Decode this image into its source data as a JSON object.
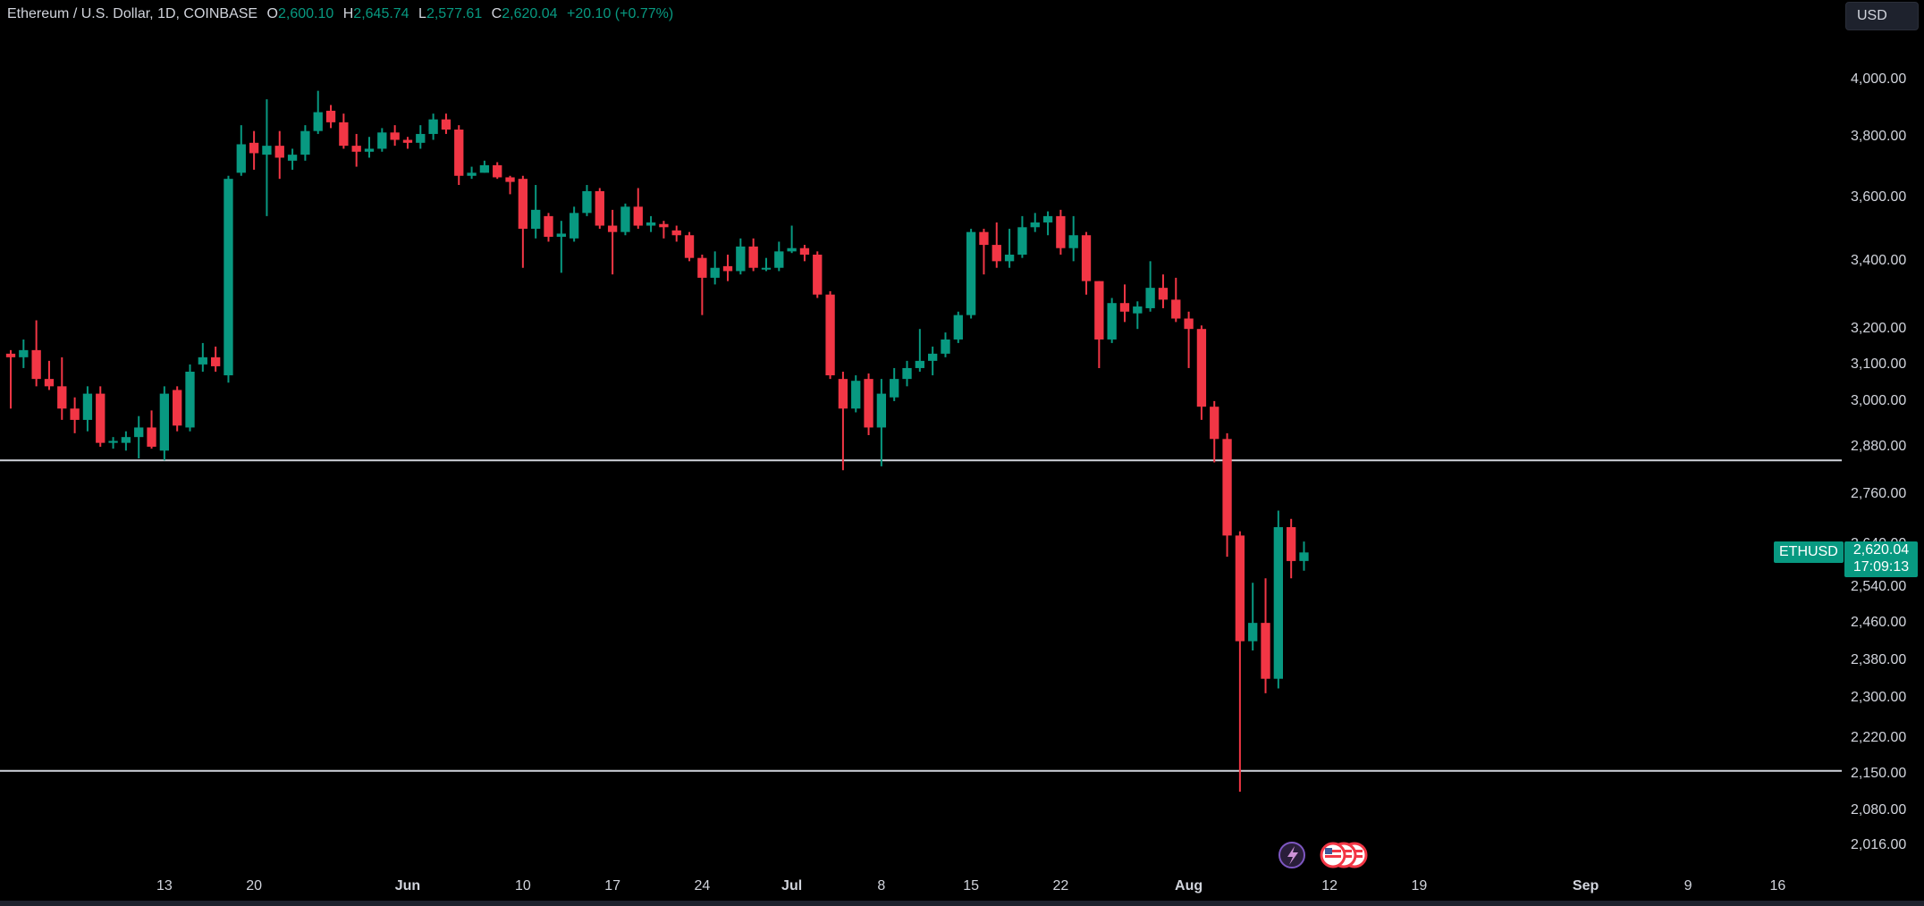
{
  "legend": {
    "symbol": "Ethereum / U.S. Dollar, 1D, COINBASE",
    "o_label": "O",
    "o_value": "2,600.10",
    "h_label": "H",
    "h_value": "2,645.74",
    "l_label": "L",
    "l_value": "2,577.61",
    "c_label": "C",
    "c_value": "2,620.04",
    "change": "+20.10 (+0.77%)"
  },
  "currency": "USD",
  "price_tag": {
    "symbol": "ETHUSD",
    "price": "2,620.04",
    "countdown": "17:09:13"
  },
  "colors": {
    "up": "#089981",
    "down": "#f23645",
    "background": "#000000",
    "hline": "#d1d4dc"
  },
  "chart_data": {
    "type": "candlestick",
    "y_scale": "log",
    "ylim": [
      1970,
      4160
    ],
    "y_ticks": [
      "4,000.00",
      "3,800.00",
      "3,600.00",
      "3,400.00",
      "3,200.00",
      "3,100.00",
      "3,000.00",
      "2,880.00",
      "2,760.00",
      "2,640.00",
      "2,540.00",
      "2,460.00",
      "2,380.00",
      "2,300.00",
      "2,220.00",
      "2,150.00",
      "2,080.00",
      "2,016.00"
    ],
    "x_ticks": [
      {
        "label": "13",
        "date": "2024-05-13"
      },
      {
        "label": "20",
        "date": "2024-05-20"
      },
      {
        "label": "Jun",
        "date": "2024-06-01",
        "bold": true
      },
      {
        "label": "10",
        "date": "2024-06-10"
      },
      {
        "label": "17",
        "date": "2024-06-17"
      },
      {
        "label": "24",
        "date": "2024-06-24"
      },
      {
        "label": "Jul",
        "date": "2024-07-01",
        "bold": true
      },
      {
        "label": "8",
        "date": "2024-07-08"
      },
      {
        "label": "15",
        "date": "2024-07-15"
      },
      {
        "label": "22",
        "date": "2024-07-22"
      },
      {
        "label": "Aug",
        "date": "2024-08-01",
        "bold": true
      },
      {
        "label": "12",
        "date": "2024-08-12"
      },
      {
        "label": "19",
        "date": "2024-08-19"
      },
      {
        "label": "Sep",
        "date": "2024-09-01",
        "bold": true
      },
      {
        "label": "9",
        "date": "2024-09-09"
      },
      {
        "label": "16",
        "date": "2024-09-16"
      }
    ],
    "x_range": [
      "2024-05-01",
      "2024-09-21"
    ],
    "horizontal_lines": [
      2845,
      2155
    ],
    "candles": [
      {
        "date": "2024-05-01",
        "o": 3130,
        "h": 3140,
        "l": 2980,
        "c": 3120
      },
      {
        "date": "2024-05-02",
        "o": 3120,
        "h": 3170,
        "l": 3090,
        "c": 3140
      },
      {
        "date": "2024-05-03",
        "o": 3140,
        "h": 3225,
        "l": 3040,
        "c": 3060
      },
      {
        "date": "2024-05-04",
        "o": 3060,
        "h": 3110,
        "l": 3030,
        "c": 3040
      },
      {
        "date": "2024-05-05",
        "o": 3040,
        "h": 3120,
        "l": 2950,
        "c": 2980
      },
      {
        "date": "2024-05-06",
        "o": 2980,
        "h": 3010,
        "l": 2915,
        "c": 2950
      },
      {
        "date": "2024-05-07",
        "o": 2950,
        "h": 3040,
        "l": 2920,
        "c": 3020
      },
      {
        "date": "2024-05-08",
        "o": 3020,
        "h": 3040,
        "l": 2880,
        "c": 2890
      },
      {
        "date": "2024-05-09",
        "o": 2890,
        "h": 2905,
        "l": 2875,
        "c": 2895
      },
      {
        "date": "2024-05-10",
        "o": 2890,
        "h": 2920,
        "l": 2870,
        "c": 2905
      },
      {
        "date": "2024-05-11",
        "o": 2905,
        "h": 2960,
        "l": 2850,
        "c": 2930
      },
      {
        "date": "2024-05-12",
        "o": 2930,
        "h": 2975,
        "l": 2875,
        "c": 2880
      },
      {
        "date": "2024-05-13",
        "o": 2870,
        "h": 3040,
        "l": 2845,
        "c": 3020
      },
      {
        "date": "2024-05-14",
        "o": 3030,
        "h": 3040,
        "l": 2920,
        "c": 2935
      },
      {
        "date": "2024-05-15",
        "o": 2930,
        "h": 3100,
        "l": 2920,
        "c": 3080
      },
      {
        "date": "2024-05-16",
        "o": 3100,
        "h": 3160,
        "l": 3080,
        "c": 3120
      },
      {
        "date": "2024-05-17",
        "o": 3120,
        "h": 3150,
        "l": 3080,
        "c": 3095
      },
      {
        "date": "2024-05-18",
        "o": 3070,
        "h": 3670,
        "l": 3050,
        "c": 3660
      },
      {
        "date": "2024-05-19",
        "o": 3680,
        "h": 3840,
        "l": 3670,
        "c": 3775
      },
      {
        "date": "2024-05-20",
        "o": 3780,
        "h": 3820,
        "l": 3690,
        "c": 3745
      },
      {
        "date": "2024-05-21",
        "o": 3740,
        "h": 3930,
        "l": 3540,
        "c": 3770
      },
      {
        "date": "2024-05-22",
        "o": 3770,
        "h": 3820,
        "l": 3660,
        "c": 3730
      },
      {
        "date": "2024-05-23",
        "o": 3720,
        "h": 3760,
        "l": 3690,
        "c": 3740
      },
      {
        "date": "2024-05-24",
        "o": 3740,
        "h": 3840,
        "l": 3720,
        "c": 3820
      },
      {
        "date": "2024-05-25",
        "o": 3820,
        "h": 3960,
        "l": 3810,
        "c": 3885
      },
      {
        "date": "2024-05-26",
        "o": 3890,
        "h": 3910,
        "l": 3830,
        "c": 3850
      },
      {
        "date": "2024-05-27",
        "o": 3850,
        "h": 3880,
        "l": 3760,
        "c": 3770
      },
      {
        "date": "2024-05-28",
        "o": 3770,
        "h": 3810,
        "l": 3700,
        "c": 3750
      },
      {
        "date": "2024-05-29",
        "o": 3750,
        "h": 3800,
        "l": 3730,
        "c": 3760
      },
      {
        "date": "2024-05-30",
        "o": 3760,
        "h": 3830,
        "l": 3750,
        "c": 3815
      },
      {
        "date": "2024-05-31",
        "o": 3815,
        "h": 3840,
        "l": 3770,
        "c": 3790
      },
      {
        "date": "2024-06-01",
        "o": 3790,
        "h": 3800,
        "l": 3760,
        "c": 3780
      },
      {
        "date": "2024-06-02",
        "o": 3780,
        "h": 3840,
        "l": 3760,
        "c": 3810
      },
      {
        "date": "2024-06-03",
        "o": 3810,
        "h": 3880,
        "l": 3790,
        "c": 3860
      },
      {
        "date": "2024-06-04",
        "o": 3860,
        "h": 3880,
        "l": 3810,
        "c": 3825
      },
      {
        "date": "2024-06-05",
        "o": 3825,
        "h": 3840,
        "l": 3640,
        "c": 3670
      },
      {
        "date": "2024-06-06",
        "o": 3670,
        "h": 3700,
        "l": 3660,
        "c": 3680
      },
      {
        "date": "2024-06-07",
        "o": 3680,
        "h": 3720,
        "l": 3680,
        "c": 3705
      },
      {
        "date": "2024-06-08",
        "o": 3705,
        "h": 3715,
        "l": 3660,
        "c": 3665
      },
      {
        "date": "2024-06-09",
        "o": 3665,
        "h": 3670,
        "l": 3610,
        "c": 3650
      },
      {
        "date": "2024-06-10",
        "o": 3660,
        "h": 3670,
        "l": 3380,
        "c": 3500
      },
      {
        "date": "2024-06-11",
        "o": 3500,
        "h": 3640,
        "l": 3470,
        "c": 3560
      },
      {
        "date": "2024-06-12",
        "o": 3540,
        "h": 3550,
        "l": 3460,
        "c": 3475
      },
      {
        "date": "2024-06-13",
        "o": 3475,
        "h": 3525,
        "l": 3365,
        "c": 3485
      },
      {
        "date": "2024-06-14",
        "o": 3470,
        "h": 3570,
        "l": 3460,
        "c": 3550
      },
      {
        "date": "2024-06-15",
        "o": 3550,
        "h": 3640,
        "l": 3540,
        "c": 3620
      },
      {
        "date": "2024-06-16",
        "o": 3620,
        "h": 3630,
        "l": 3500,
        "c": 3510
      },
      {
        "date": "2024-06-17",
        "o": 3510,
        "h": 3560,
        "l": 3360,
        "c": 3490
      },
      {
        "date": "2024-06-18",
        "o": 3490,
        "h": 3580,
        "l": 3480,
        "c": 3570
      },
      {
        "date": "2024-06-19",
        "o": 3570,
        "h": 3630,
        "l": 3500,
        "c": 3510
      },
      {
        "date": "2024-06-20",
        "o": 3510,
        "h": 3540,
        "l": 3490,
        "c": 3520
      },
      {
        "date": "2024-06-21",
        "o": 3515,
        "h": 3525,
        "l": 3470,
        "c": 3505
      },
      {
        "date": "2024-06-22",
        "o": 3495,
        "h": 3510,
        "l": 3460,
        "c": 3480
      },
      {
        "date": "2024-06-23",
        "o": 3480,
        "h": 3490,
        "l": 3400,
        "c": 3410
      },
      {
        "date": "2024-06-24",
        "o": 3410,
        "h": 3420,
        "l": 3240,
        "c": 3350
      },
      {
        "date": "2024-06-25",
        "o": 3350,
        "h": 3430,
        "l": 3330,
        "c": 3380
      },
      {
        "date": "2024-06-26",
        "o": 3385,
        "h": 3420,
        "l": 3340,
        "c": 3370
      },
      {
        "date": "2024-06-27",
        "o": 3370,
        "h": 3470,
        "l": 3360,
        "c": 3445
      },
      {
        "date": "2024-06-28",
        "o": 3445,
        "h": 3470,
        "l": 3370,
        "c": 3380
      },
      {
        "date": "2024-06-29",
        "o": 3375,
        "h": 3410,
        "l": 3370,
        "c": 3380
      },
      {
        "date": "2024-06-30",
        "o": 3380,
        "h": 3460,
        "l": 3370,
        "c": 3430
      },
      {
        "date": "2024-07-01",
        "o": 3430,
        "h": 3510,
        "l": 3425,
        "c": 3440
      },
      {
        "date": "2024-07-02",
        "o": 3440,
        "h": 3450,
        "l": 3400,
        "c": 3420
      },
      {
        "date": "2024-07-03",
        "o": 3420,
        "h": 3430,
        "l": 3290,
        "c": 3300
      },
      {
        "date": "2024-07-04",
        "o": 3300,
        "h": 3310,
        "l": 3060,
        "c": 3070
      },
      {
        "date": "2024-07-05",
        "o": 3060,
        "h": 3080,
        "l": 2820,
        "c": 2980
      },
      {
        "date": "2024-07-06",
        "o": 2980,
        "h": 3070,
        "l": 2970,
        "c": 3055
      },
      {
        "date": "2024-07-07",
        "o": 3060,
        "h": 3075,
        "l": 2910,
        "c": 2930
      },
      {
        "date": "2024-07-08",
        "o": 2930,
        "h": 3060,
        "l": 2830,
        "c": 3020
      },
      {
        "date": "2024-07-09",
        "o": 3010,
        "h": 3090,
        "l": 3000,
        "c": 3060
      },
      {
        "date": "2024-07-10",
        "o": 3060,
        "h": 3110,
        "l": 3040,
        "c": 3090
      },
      {
        "date": "2024-07-11",
        "o": 3090,
        "h": 3200,
        "l": 3080,
        "c": 3110
      },
      {
        "date": "2024-07-12",
        "o": 3110,
        "h": 3150,
        "l": 3070,
        "c": 3130
      },
      {
        "date": "2024-07-13",
        "o": 3130,
        "h": 3190,
        "l": 3120,
        "c": 3170
      },
      {
        "date": "2024-07-14",
        "o": 3170,
        "h": 3250,
        "l": 3160,
        "c": 3240
      },
      {
        "date": "2024-07-15",
        "o": 3240,
        "h": 3500,
        "l": 3230,
        "c": 3490
      },
      {
        "date": "2024-07-16",
        "o": 3490,
        "h": 3500,
        "l": 3360,
        "c": 3450
      },
      {
        "date": "2024-07-17",
        "o": 3450,
        "h": 3520,
        "l": 3380,
        "c": 3400
      },
      {
        "date": "2024-07-18",
        "o": 3400,
        "h": 3500,
        "l": 3380,
        "c": 3420
      },
      {
        "date": "2024-07-19",
        "o": 3420,
        "h": 3540,
        "l": 3410,
        "c": 3505
      },
      {
        "date": "2024-07-20",
        "o": 3505,
        "h": 3550,
        "l": 3490,
        "c": 3520
      },
      {
        "date": "2024-07-21",
        "o": 3520,
        "h": 3555,
        "l": 3480,
        "c": 3540
      },
      {
        "date": "2024-07-22",
        "o": 3540,
        "h": 3560,
        "l": 3420,
        "c": 3440
      },
      {
        "date": "2024-07-23",
        "o": 3440,
        "h": 3540,
        "l": 3400,
        "c": 3480
      },
      {
        "date": "2024-07-24",
        "o": 3480,
        "h": 3490,
        "l": 3300,
        "c": 3340
      },
      {
        "date": "2024-07-25",
        "o": 3340,
        "h": 3340,
        "l": 3090,
        "c": 3170
      },
      {
        "date": "2024-07-26",
        "o": 3170,
        "h": 3290,
        "l": 3160,
        "c": 3275
      },
      {
        "date": "2024-07-27",
        "o": 3275,
        "h": 3330,
        "l": 3220,
        "c": 3250
      },
      {
        "date": "2024-07-28",
        "o": 3245,
        "h": 3280,
        "l": 3200,
        "c": 3265
      },
      {
        "date": "2024-07-29",
        "o": 3260,
        "h": 3400,
        "l": 3250,
        "c": 3320
      },
      {
        "date": "2024-07-30",
        "o": 3320,
        "h": 3360,
        "l": 3260,
        "c": 3285
      },
      {
        "date": "2024-07-31",
        "o": 3285,
        "h": 3350,
        "l": 3220,
        "c": 3230
      },
      {
        "date": "2024-08-01",
        "o": 3230,
        "h": 3250,
        "l": 3090,
        "c": 3200
      },
      {
        "date": "2024-08-02",
        "o": 3200,
        "h": 3210,
        "l": 2950,
        "c": 2985
      },
      {
        "date": "2024-08-03",
        "o": 2985,
        "h": 3000,
        "l": 2840,
        "c": 2900
      },
      {
        "date": "2024-08-04",
        "o": 2900,
        "h": 2915,
        "l": 2610,
        "c": 2660
      },
      {
        "date": "2024-08-05",
        "o": 2660,
        "h": 2670,
        "l": 2115,
        "c": 2420
      },
      {
        "date": "2024-08-06",
        "o": 2420,
        "h": 2550,
        "l": 2400,
        "c": 2460
      },
      {
        "date": "2024-08-07",
        "o": 2460,
        "h": 2560,
        "l": 2310,
        "c": 2340
      },
      {
        "date": "2024-08-08",
        "o": 2340,
        "h": 2720,
        "l": 2320,
        "c": 2680
      },
      {
        "date": "2024-08-09",
        "o": 2680,
        "h": 2700,
        "l": 2560,
        "c": 2600
      },
      {
        "date": "2024-08-10",
        "o": 2600.1,
        "h": 2645.74,
        "l": 2577.61,
        "c": 2620.04
      }
    ]
  }
}
